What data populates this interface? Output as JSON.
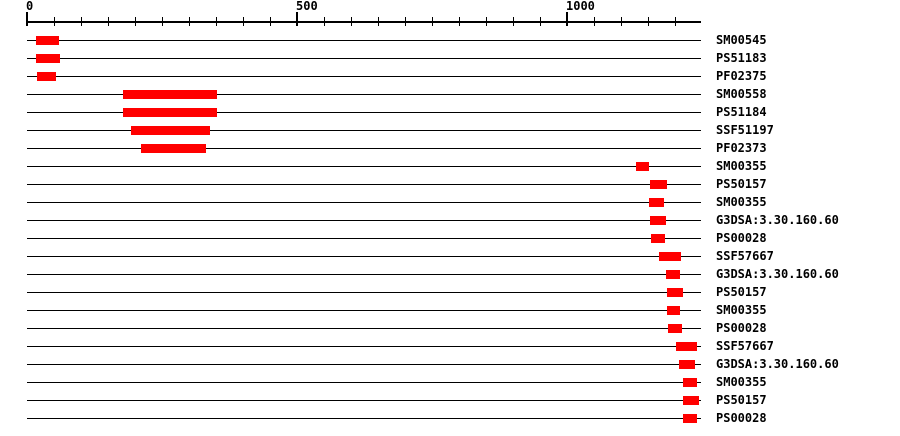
{
  "figure": {
    "background_color": "#ffffff",
    "match_color": "#ff0000",
    "line_color": "#000000",
    "text_color": "#000000"
  },
  "chart_data": {
    "type": "bar",
    "subtype": "protein-signature-match-tracks",
    "orientation": "horizontal",
    "title": "",
    "axis": {
      "min": 0,
      "max": 1246,
      "tick_interval": 50,
      "labeled_ticks": [
        0,
        500,
        1000
      ],
      "tick_labels": [
        "0",
        "500",
        "1000"
      ],
      "position": "top",
      "grid": false
    },
    "legend": null,
    "rows": [
      {
        "label": "SM00545",
        "start": 17,
        "end": 60
      },
      {
        "label": "PS51183",
        "start": 17,
        "end": 61
      },
      {
        "label": "PF02375",
        "start": 18,
        "end": 54
      },
      {
        "label": "SM00558",
        "start": 177,
        "end": 351
      },
      {
        "label": "PS51184",
        "start": 177,
        "end": 351
      },
      {
        "label": "SSF51197",
        "start": 192,
        "end": 339
      },
      {
        "label": "PF02373",
        "start": 211,
        "end": 332
      },
      {
        "label": "SM00355",
        "start": 1128,
        "end": 1152
      },
      {
        "label": "PS50157",
        "start": 1154,
        "end": 1185
      },
      {
        "label": "SM00355",
        "start": 1152,
        "end": 1179
      },
      {
        "label": "G3DSA:3.30.160.60",
        "start": 1154,
        "end": 1183
      },
      {
        "label": "PS00028",
        "start": 1155,
        "end": 1180
      },
      {
        "label": "SSF57667",
        "start": 1171,
        "end": 1211
      },
      {
        "label": "G3DSA:3.30.160.60",
        "start": 1183,
        "end": 1209
      },
      {
        "label": "PS50157",
        "start": 1185,
        "end": 1214
      },
      {
        "label": "SM00355",
        "start": 1185,
        "end": 1209
      },
      {
        "label": "PS00028",
        "start": 1186,
        "end": 1211
      },
      {
        "label": "SSF57667",
        "start": 1202,
        "end": 1240
      },
      {
        "label": "G3DSA:3.30.160.60",
        "start": 1208,
        "end": 1237
      },
      {
        "label": "SM00355",
        "start": 1214,
        "end": 1239
      },
      {
        "label": "PS50157",
        "start": 1214,
        "end": 1244
      },
      {
        "label": "PS00028",
        "start": 1215,
        "end": 1241
      }
    ]
  }
}
